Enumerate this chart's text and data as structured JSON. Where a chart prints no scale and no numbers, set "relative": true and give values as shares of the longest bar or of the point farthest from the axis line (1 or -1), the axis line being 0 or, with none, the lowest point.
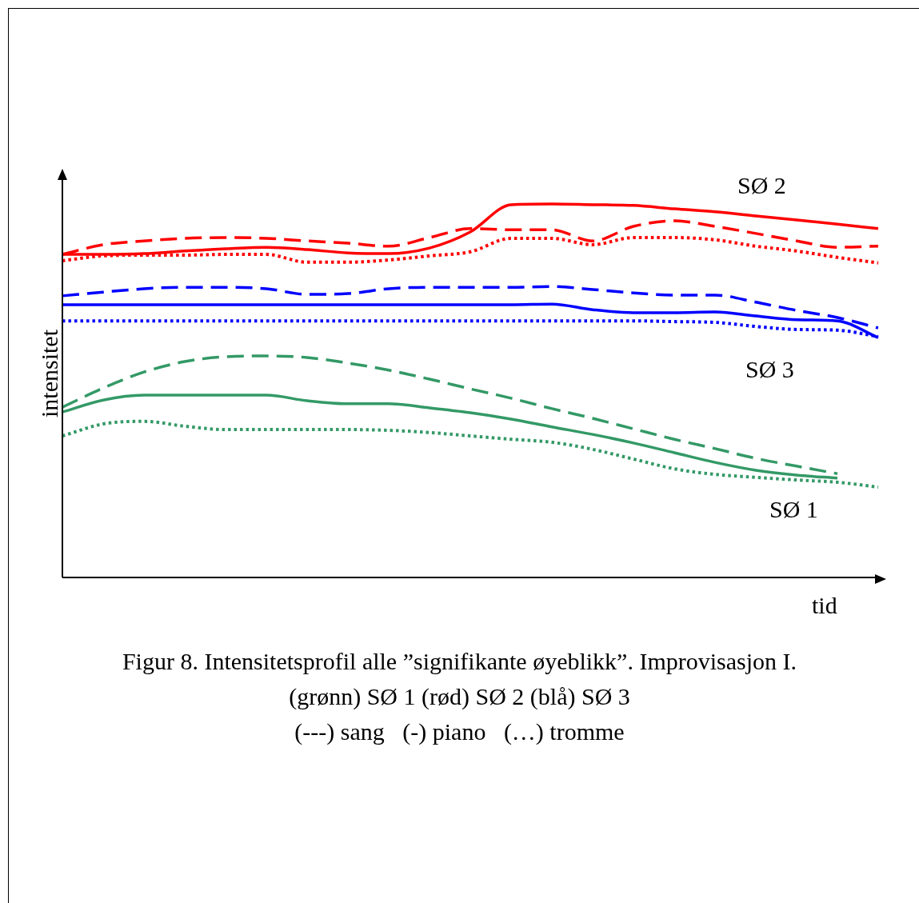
{
  "chart_data": {
    "type": "line",
    "relative": true,
    "title": "Figur 8. Intensitetsprofil alle ”signifikante øyeblikk”. Improvisasjon I.",
    "subtitle": "(grønn) SØ 1 (rød) SØ 2 (blå) SØ 3",
    "xlabel": "tid",
    "ylabel": "intensitet",
    "annotations": [
      "SØ 2",
      "SØ 3",
      "SØ 1",
      "(---) sang   (-) piano   (…) tromme"
    ],
    "categories": [
      null,
      null,
      null,
      null,
      null,
      null,
      null,
      null,
      null,
      null,
      null,
      null,
      null,
      null,
      null,
      null,
      null,
      null,
      null,
      null,
      null
    ],
    "series": [
      {
        "color": "#ff0000",
        "line_style": "solid",
        "values": [
          0.865,
          0.865,
          0.867,
          0.874,
          0.88,
          0.884,
          0.878,
          0.869,
          0.867,
          0.882,
          0.925,
          0.998,
          1.0,
          0.998,
          0.996,
          0.987,
          0.979,
          0.968,
          0.957,
          0.946,
          0.934
        ]
      },
      {
        "color": "#ff0000",
        "line_style": "dashed",
        "values": [
          0.865,
          0.891,
          0.901,
          0.908,
          0.91,
          0.908,
          0.901,
          0.895,
          0.887,
          0.91,
          0.934,
          0.931,
          0.931,
          0.901,
          0.94,
          0.955,
          0.94,
          0.921,
          0.901,
          0.884,
          0.887
        ]
      },
      {
        "color": "#ff0000",
        "line_style": "dotted",
        "values": [
          0.848,
          0.861,
          0.863,
          0.863,
          0.865,
          0.865,
          0.844,
          0.844,
          0.85,
          0.861,
          0.872,
          0.908,
          0.908,
          0.891,
          0.91,
          0.91,
          0.904,
          0.887,
          0.874,
          0.857,
          0.842
        ]
      },
      {
        "color": "#0000ff",
        "line_style": "dashed",
        "values": [
          0.754,
          0.764,
          0.773,
          0.777,
          0.777,
          0.773,
          0.758,
          0.76,
          0.773,
          0.777,
          0.777,
          0.777,
          0.779,
          0.771,
          0.762,
          0.756,
          0.756,
          0.737,
          0.715,
          0.696,
          0.668
        ]
      },
      {
        "color": "#0000ff",
        "line_style": "solid",
        "values": [
          0.73,
          0.73,
          0.73,
          0.73,
          0.73,
          0.73,
          0.73,
          0.73,
          0.73,
          0.73,
          0.73,
          0.73,
          0.732,
          0.717,
          0.709,
          0.709,
          0.711,
          0.7,
          0.69,
          0.687,
          0.642
        ]
      },
      {
        "color": "#0000ff",
        "line_style": "dotted",
        "values": [
          0.687,
          0.687,
          0.687,
          0.687,
          0.687,
          0.687,
          0.687,
          0.687,
          0.687,
          0.687,
          0.687,
          0.687,
          0.687,
          0.687,
          0.687,
          0.685,
          0.683,
          0.672,
          0.664,
          0.662,
          0.645
        ]
      },
      {
        "color": "#339966",
        "line_style": "dashed",
        "values": [
          0.456,
          0.507,
          0.55,
          0.578,
          0.591,
          0.593,
          0.589,
          0.574,
          0.555,
          0.531,
          0.505,
          0.48,
          0.452,
          0.426,
          0.398,
          0.37,
          0.345,
          0.319,
          0.298,
          0.278,
          null
        ]
      },
      {
        "color": "#339966",
        "line_style": "solid",
        "values": [
          0.443,
          0.475,
          0.488,
          0.488,
          0.488,
          0.488,
          0.473,
          0.465,
          0.465,
          0.454,
          0.441,
          0.424,
          0.403,
          0.383,
          0.36,
          0.334,
          0.308,
          0.287,
          0.274,
          0.266,
          null
        ]
      },
      {
        "color": "#339966",
        "line_style": "dotted",
        "values": [
          0.379,
          0.411,
          0.418,
          0.405,
          0.396,
          0.396,
          0.396,
          0.396,
          0.394,
          0.388,
          0.379,
          0.37,
          0.362,
          0.343,
          0.317,
          0.291,
          0.276,
          0.268,
          0.261,
          0.255,
          0.242
        ]
      }
    ]
  }
}
